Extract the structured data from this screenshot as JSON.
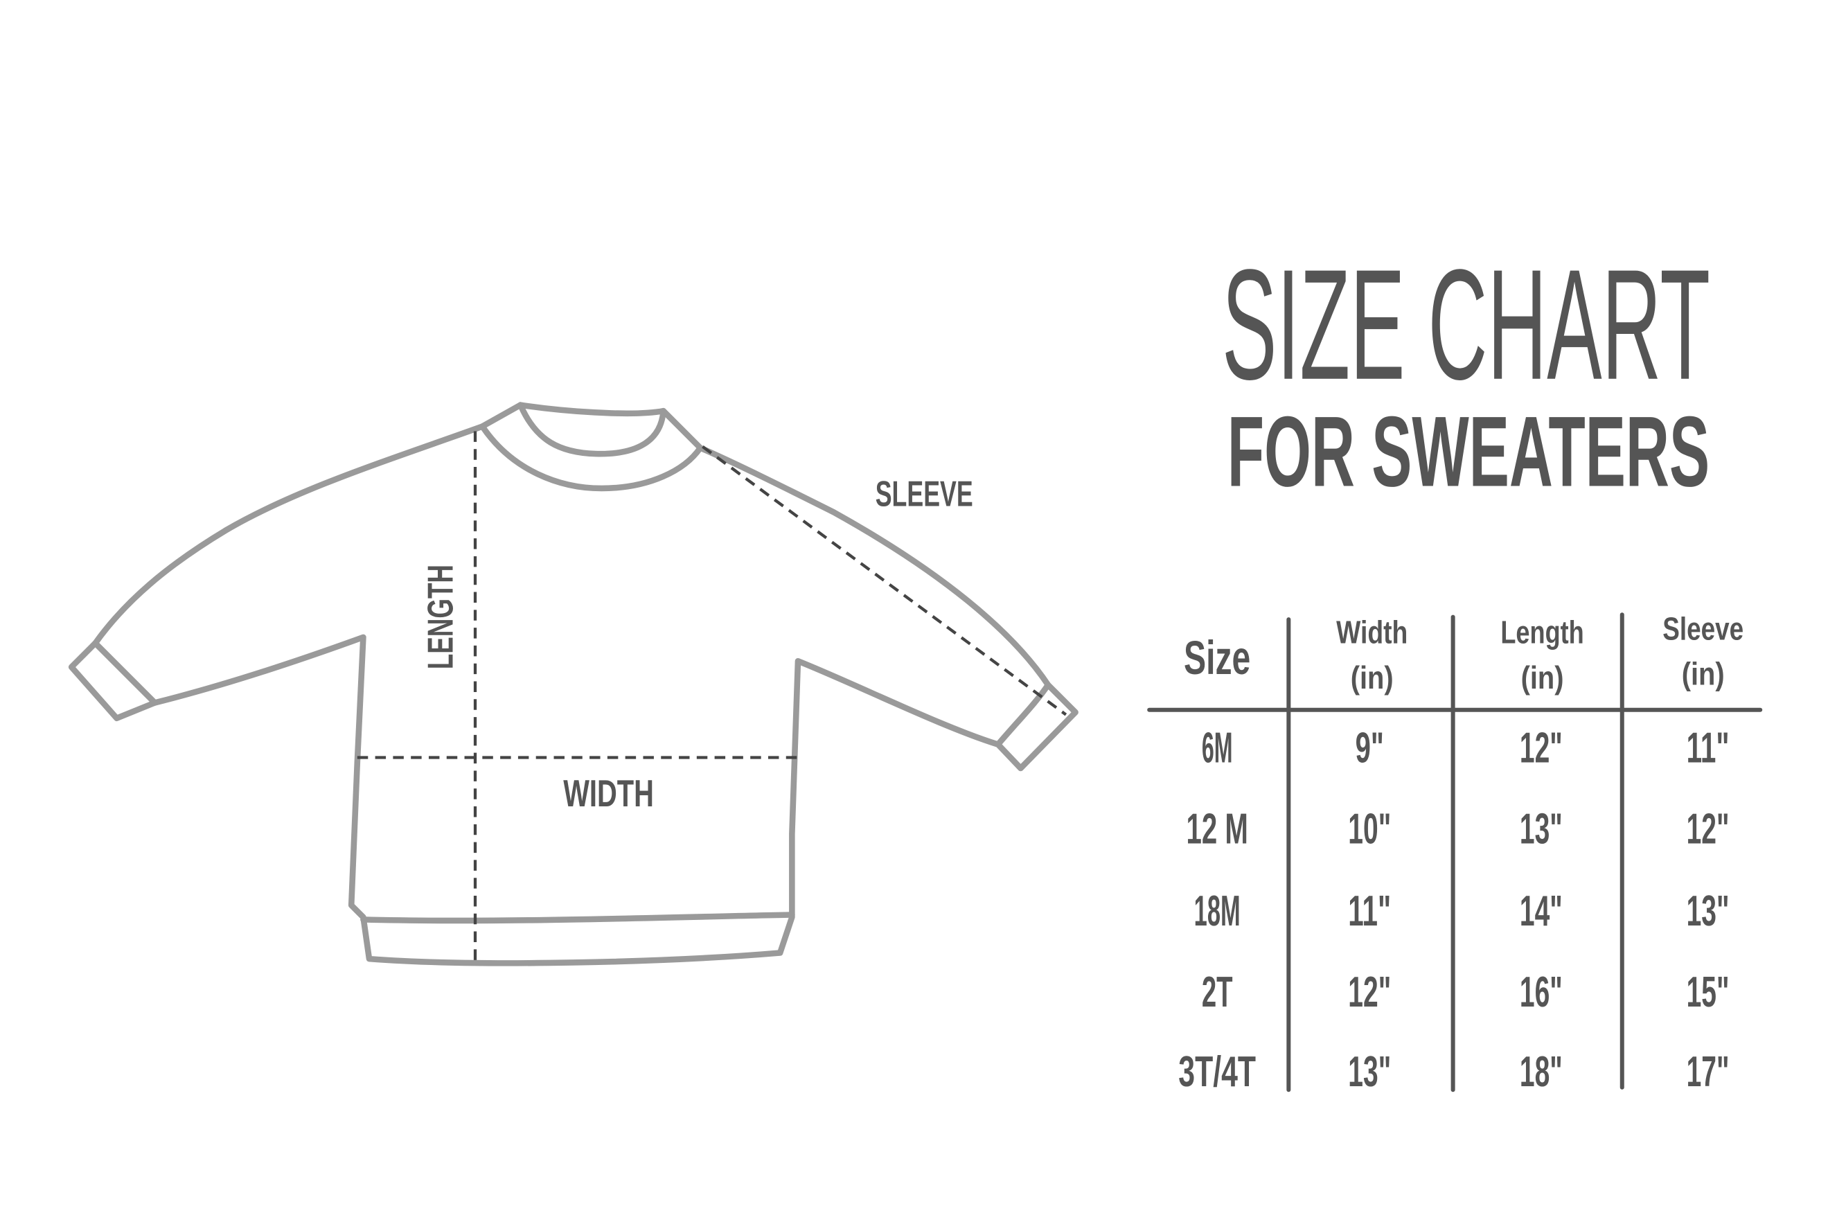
{
  "title": {
    "line1": "SIZE CHART",
    "line2": "FOR SWEATERS"
  },
  "diagram": {
    "labels": {
      "sleeve": "SLEEVE",
      "length": "LENGTH",
      "width": "WIDTH"
    }
  },
  "colors": {
    "text": "#555555",
    "outline": "#9a9a9a",
    "dash": "#444444"
  },
  "table": {
    "headers": [
      {
        "line1": "Size",
        "line2": ""
      },
      {
        "line1": "Width",
        "line2": "(in)"
      },
      {
        "line1": "Length",
        "line2": "(in)"
      },
      {
        "line1": "Sleeve",
        "line2": "(in)"
      }
    ],
    "rows": [
      [
        "6M",
        "9\"",
        "12\"",
        "11\""
      ],
      [
        "12 M",
        "10\"",
        "13\"",
        "12\""
      ],
      [
        "18M",
        "11\"",
        "14\"",
        "13\""
      ],
      [
        "2T",
        "12\"",
        "16\"",
        "15\""
      ],
      [
        "3T/4T",
        "13\"",
        "18\"",
        "17\""
      ]
    ]
  }
}
